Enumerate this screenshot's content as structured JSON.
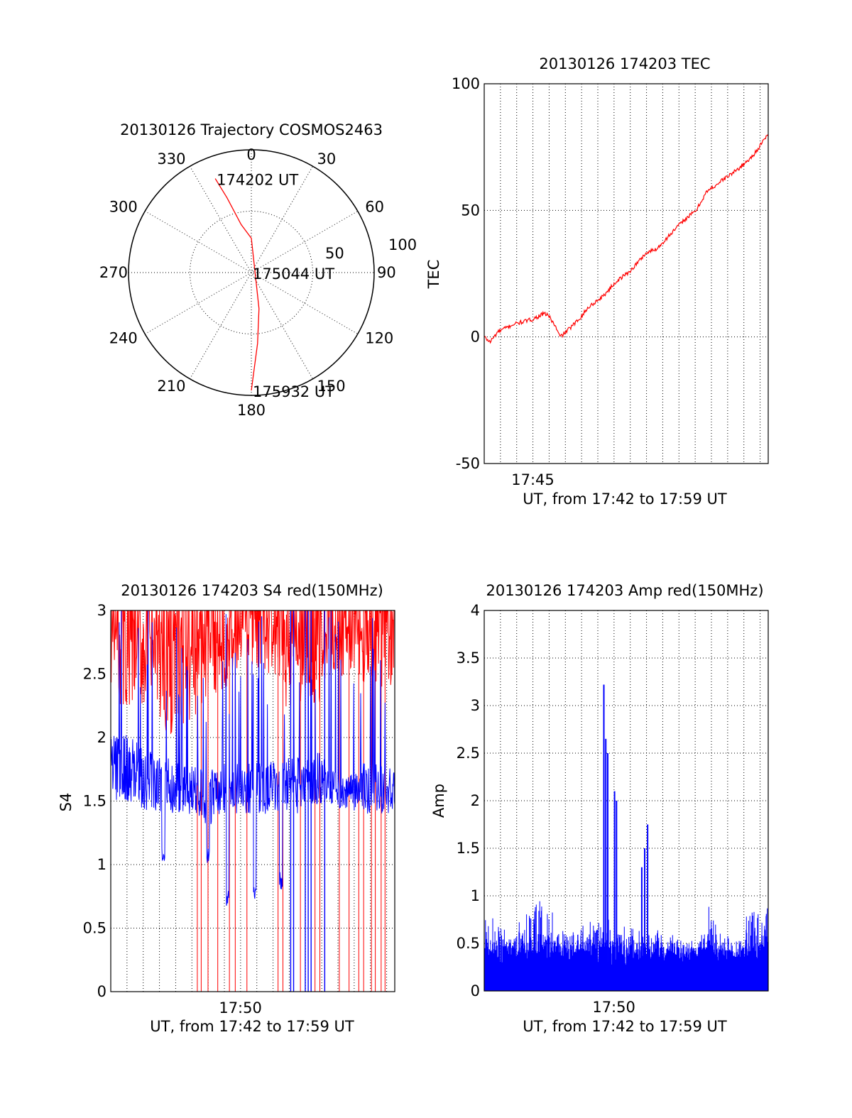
{
  "chart_data": [
    {
      "type": "polar",
      "title": "20130126 Trajectory COSMOS2463",
      "angle_labels": [
        {
          "label": "0",
          "angle": 0
        },
        {
          "label": "30",
          "angle": 30
        },
        {
          "label": "60",
          "angle": 60
        },
        {
          "label": "90",
          "angle": 90
        },
        {
          "label": "120",
          "angle": 120
        },
        {
          "label": "150",
          "angle": 150
        },
        {
          "label": "180",
          "angle": 180
        },
        {
          "label": "210",
          "angle": 210
        },
        {
          "label": "240",
          "angle": 240
        },
        {
          "label": "270",
          "angle": 270
        },
        {
          "label": "300",
          "angle": 300
        },
        {
          "label": "330",
          "angle": 330
        }
      ],
      "radial_labels": [
        {
          "label": "50",
          "r": 50
        },
        {
          "label": "100",
          "r": 100
        }
      ],
      "rlim": [
        0,
        100
      ],
      "dotted_rings": [
        25,
        50
      ],
      "trajectory": {
        "color": "#ff0000",
        "points": [
          {
            "az": 339,
            "zen": 82
          },
          {
            "az": 342,
            "zen": 64
          },
          {
            "az": 348,
            "zen": 40
          },
          {
            "az": 0,
            "zen": 28
          },
          {
            "az": 168,
            "zen": 30
          },
          {
            "az": 175,
            "zen": 58
          },
          {
            "az": 180,
            "zen": 96
          }
        ]
      },
      "annotations": [
        {
          "text": "174202 UT",
          "az": 339,
          "zen": 82
        },
        {
          "text": "175044 UT",
          "az": 0,
          "zen": 0
        },
        {
          "text": "175932 UT",
          "az": 180,
          "zen": 96
        }
      ]
    },
    {
      "type": "line",
      "title": "20130126 174203 TEC",
      "xlabel": "UT, from 17:42 to 17:59 UT",
      "ylabel": "TEC",
      "xlim": [
        17.7,
        17.992
      ],
      "ylim": [
        -50,
        100
      ],
      "yticks": [
        -50,
        0,
        50,
        100
      ],
      "ytick_labels": [
        "-50",
        "0",
        "50",
        "100"
      ],
      "xtick_label": {
        "text": "17:45",
        "x": 17.75
      },
      "grid": true,
      "series": [
        {
          "color": "#ff0000",
          "points": [
            [
              17.7,
              0
            ],
            [
              17.706,
              -2
            ],
            [
              17.714,
              2
            ],
            [
              17.73,
              5
            ],
            [
              17.75,
              7
            ],
            [
              17.76,
              9
            ],
            [
              17.765,
              9
            ],
            [
              17.772,
              5
            ],
            [
              17.778,
              0
            ],
            [
              17.784,
              2
            ],
            [
              17.795,
              6
            ],
            [
              17.808,
              12
            ],
            [
              17.822,
              16
            ],
            [
              17.836,
              22
            ],
            [
              17.85,
              26
            ],
            [
              17.866,
              33
            ],
            [
              17.878,
              35
            ],
            [
              17.89,
              40
            ],
            [
              17.905,
              46
            ],
            [
              17.918,
              50
            ],
            [
              17.928,
              57
            ],
            [
              17.945,
              62
            ],
            [
              17.96,
              66
            ],
            [
              17.975,
              71
            ],
            [
              17.992,
              80
            ]
          ]
        }
      ]
    },
    {
      "type": "bar",
      "title": "20130126 174203 S4 red(150MHz)",
      "xlabel": "UT, from 17:42 to 17:59 UT",
      "ylabel": "S4",
      "xlim": [
        17.7,
        17.992
      ],
      "ylim": [
        0,
        3
      ],
      "yticks": [
        0,
        0.5,
        1,
        1.5,
        2,
        2.5,
        3
      ],
      "ytick_labels": [
        "0",
        "0.5",
        "1",
        "1.5",
        "2",
        "2.5",
        "3"
      ],
      "xtick_label": {
        "text": "17:50",
        "x": 17.8333
      },
      "grid": true,
      "series": [
        {
          "color": "#ff0000",
          "bands": [
            [
              17.7,
              2.4,
              3
            ],
            [
              17.72,
              2.1,
              3
            ],
            [
              17.74,
              2.2,
              3
            ],
            [
              17.76,
              2.0,
              3
            ],
            [
              17.78,
              2.1,
              3
            ],
            [
              17.8,
              2.3,
              3
            ],
            [
              17.82,
              2.4,
              3
            ],
            [
              17.84,
              2.5,
              3
            ],
            [
              17.86,
              2.5,
              3
            ],
            [
              17.88,
              2.2,
              3
            ],
            [
              17.9,
              2.2,
              3
            ],
            [
              17.92,
              2.3,
              3
            ],
            [
              17.94,
              2.5,
              3
            ],
            [
              17.96,
              2.4,
              3
            ],
            [
              17.98,
              2.4,
              3
            ]
          ],
          "dropouts": [
            17.789,
            17.793,
            17.8,
            17.81,
            17.822,
            17.828,
            17.84,
            17.872,
            17.877,
            17.895,
            17.91,
            17.915,
            17.92,
            17.935,
            17.945,
            17.955,
            17.96,
            17.968,
            17.972,
            17.978,
            17.982
          ]
        },
        {
          "color": "#0000ff",
          "bands": [
            [
              17.7,
              1.5,
              2.1
            ],
            [
              17.72,
              1.5,
              2.0
            ],
            [
              17.74,
              1.4,
              1.9
            ],
            [
              17.76,
              1.4,
              1.85
            ],
            [
              17.78,
              1.4,
              1.8
            ],
            [
              17.8,
              1.3,
              1.75
            ],
            [
              17.82,
              1.4,
              1.8
            ],
            [
              17.84,
              1.4,
              1.8
            ],
            [
              17.86,
              1.4,
              1.8
            ],
            [
              17.88,
              1.4,
              1.85
            ],
            [
              17.9,
              1.4,
              1.85
            ],
            [
              17.92,
              1.5,
              1.9
            ],
            [
              17.94,
              1.4,
              1.7
            ],
            [
              17.96,
              1.4,
              1.8
            ],
            [
              17.98,
              1.4,
              1.8
            ]
          ],
          "dips": [
            [
              17.754,
              1.0
            ],
            [
              17.8,
              1.0
            ],
            [
              17.82,
              0.65
            ],
            [
              17.848,
              0.7
            ],
            [
              17.875,
              0.8
            ]
          ],
          "dropouts": [
            17.885,
            17.888,
            17.9,
            17.903,
            17.906,
            17.92
          ]
        }
      ]
    },
    {
      "type": "bar",
      "title": "20130126 174203 Amp red(150MHz)",
      "xlabel": "UT, from 17:42 to 17:59 UT",
      "ylabel": "Amp",
      "xlim": [
        17.7,
        17.992
      ],
      "ylim": [
        0,
        4
      ],
      "yticks": [
        0,
        0.5,
        1,
        1.5,
        2,
        2.5,
        3,
        3.5,
        4
      ],
      "ytick_labels": [
        "0",
        "0.5",
        "1",
        "1.5",
        "2",
        "2.5",
        "3",
        "3.5",
        "4"
      ],
      "xtick_label": {
        "text": "17:50",
        "x": 17.8333
      },
      "grid": true,
      "series": [
        {
          "color": "#0000ff",
          "fill_level": 0.5,
          "envelope": [
            [
              17.7,
              0.9
            ],
            [
              17.72,
              0.8
            ],
            [
              17.74,
              0.85
            ],
            [
              17.76,
              1.1
            ],
            [
              17.78,
              0.8
            ],
            [
              17.8,
              0.75
            ],
            [
              17.82,
              0.9
            ],
            [
              17.84,
              0.8
            ],
            [
              17.86,
              0.7
            ],
            [
              17.88,
              0.75
            ],
            [
              17.9,
              0.7
            ],
            [
              17.92,
              0.65
            ],
            [
              17.93,
              1.0
            ],
            [
              17.94,
              0.7
            ],
            [
              17.96,
              0.6
            ],
            [
              17.97,
              0.9
            ],
            [
              17.98,
              1.0
            ],
            [
              17.992,
              1.1
            ]
          ],
          "spikes": [
            [
              17.823,
              3.22
            ],
            [
              17.825,
              2.65
            ],
            [
              17.827,
              2.5
            ],
            [
              17.834,
              2.1
            ],
            [
              17.836,
              2.0
            ],
            [
              17.862,
              1.3
            ],
            [
              17.865,
              1.5
            ],
            [
              17.868,
              1.75
            ]
          ]
        }
      ]
    }
  ]
}
